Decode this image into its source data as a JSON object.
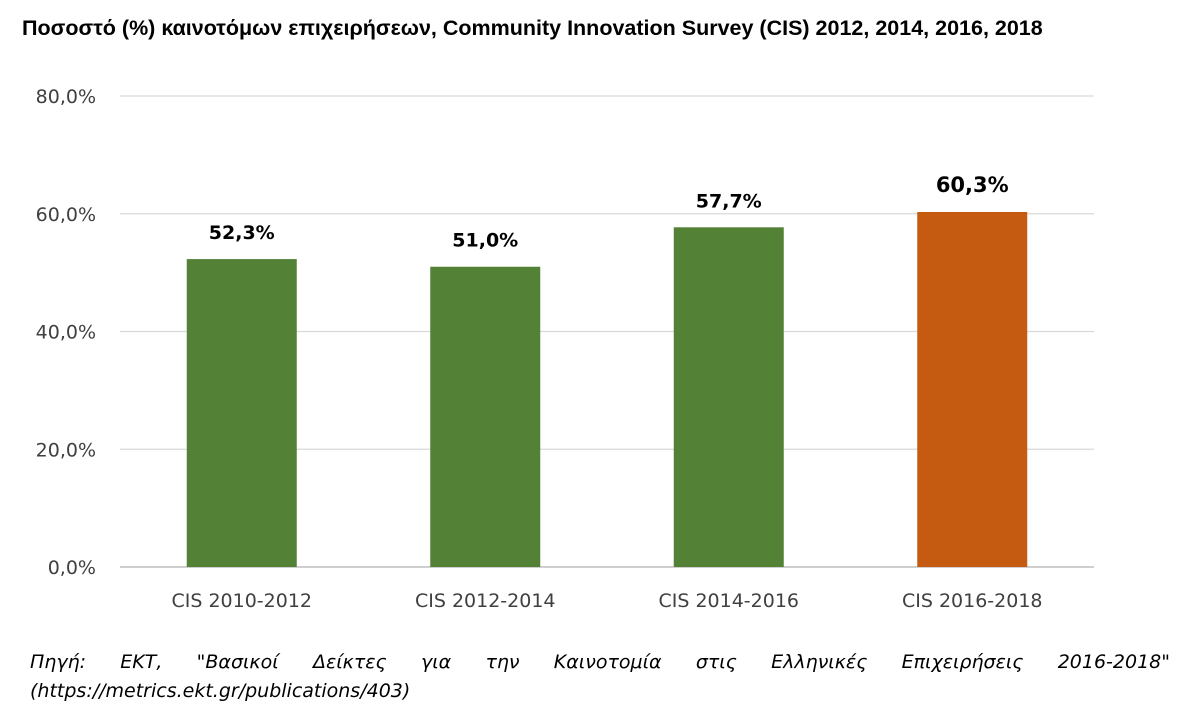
{
  "chart_data": {
    "type": "bar",
    "title": "Ποσοστό (%) καινοτόμων επιχειρήσεων, Community Innovation Survey (CIS) 2012, 2014, 2016, 2018",
    "categories": [
      "CIS 2010-2012",
      "CIS 2012-2014",
      "CIS 2014-2016",
      "CIS 2016-2018"
    ],
    "values": [
      52.3,
      51.0,
      57.7,
      60.3
    ],
    "value_labels": [
      "52,3%",
      "51,0%",
      "57,7%",
      "60,3%"
    ],
    "bar_colors": [
      "#538135",
      "#538135",
      "#538135",
      "#c55a11"
    ],
    "yticks": [
      {
        "value": 0,
        "label": "0,0%"
      },
      {
        "value": 20,
        "label": "20,0%"
      },
      {
        "value": 40,
        "label": "40,0%"
      },
      {
        "value": 60,
        "label": "60,0%"
      },
      {
        "value": 80,
        "label": "80,0%"
      }
    ],
    "ylim": [
      0,
      80
    ],
    "xlabel": "",
    "ylabel": "",
    "grid": true,
    "legend": "none"
  },
  "source": {
    "line1": "Πηγή: ΕΚΤ, \"Βασικοί Δείκτες για την Καινοτομία στις Ελληνικές Επιχειρήσεις 2016-2018\"",
    "line2": "(https://metrics.ekt.gr/publications/403)"
  }
}
